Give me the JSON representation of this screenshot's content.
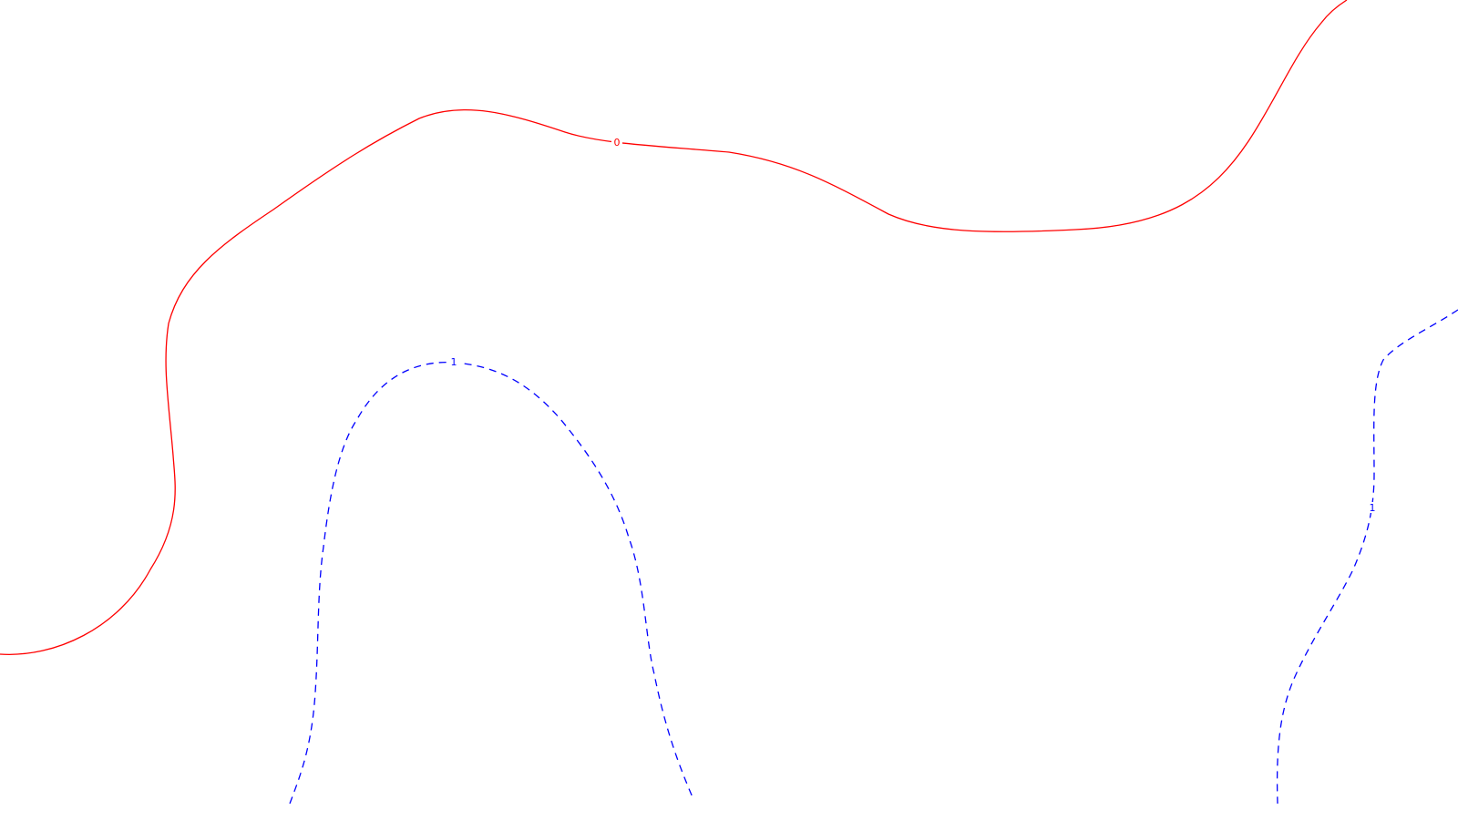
{
  "map": {
    "background_color": "#ffffff",
    "contours": [
      {
        "id": "contour-0",
        "label": "0",
        "color": "#ff0000",
        "style": "solid"
      },
      {
        "id": "contour-1-left",
        "label": "1",
        "color": "#0000ff",
        "style": "dashed"
      },
      {
        "id": "contour-1-right",
        "label": "1",
        "color": "#0000ff",
        "style": "dashed"
      }
    ]
  }
}
